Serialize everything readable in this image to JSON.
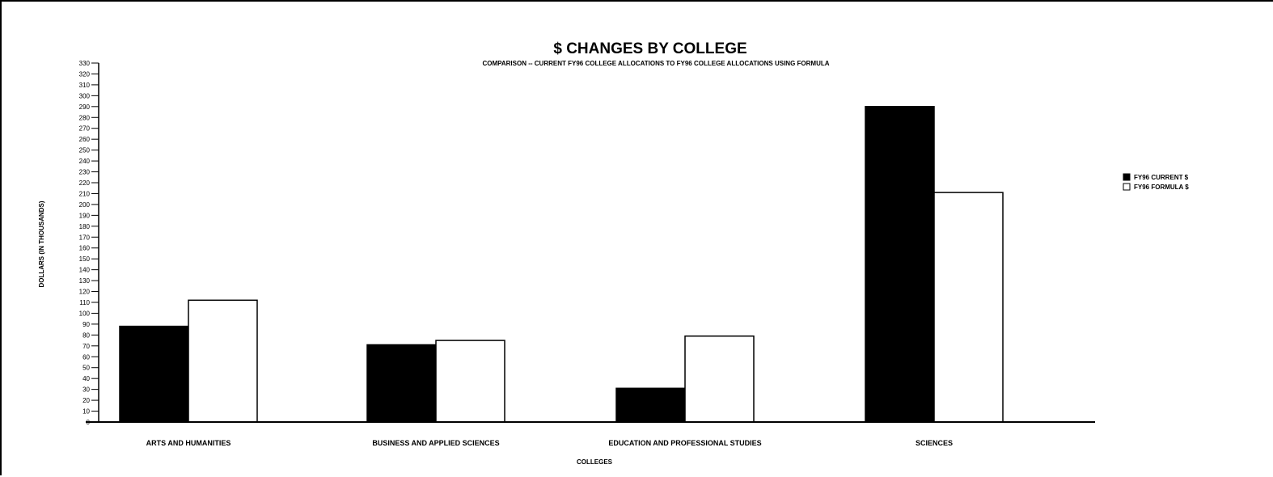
{
  "chart_data": {
    "type": "bar",
    "title": "$ CHANGES BY COLLEGE",
    "subtitle": "COMPARISON -- CURRENT FY96 COLLEGE ALLOCATIONS TO FY96 COLLEGE ALLOCATIONS USING FORMULA",
    "xlabel": "COLLEGES",
    "ylabel": "DOLLARS (IN THOUSANDS)",
    "ylim": [
      0,
      330
    ],
    "ytick_step": 10,
    "grid": false,
    "legend_position": "right",
    "categories": [
      "ARTS AND HUMANITIES",
      "BUSINESS AND APPLIED SCIENCES",
      "EDUCATION AND PROFESSIONAL STUDIES",
      "SCIENCES"
    ],
    "series": [
      {
        "name": "FY96 CURRENT $",
        "values": [
          88,
          71,
          31,
          290
        ],
        "fill": "#000000"
      },
      {
        "name": "FY96 FORMULA $",
        "values": [
          112,
          75,
          79,
          211
        ],
        "fill": "#ffffff"
      }
    ]
  }
}
